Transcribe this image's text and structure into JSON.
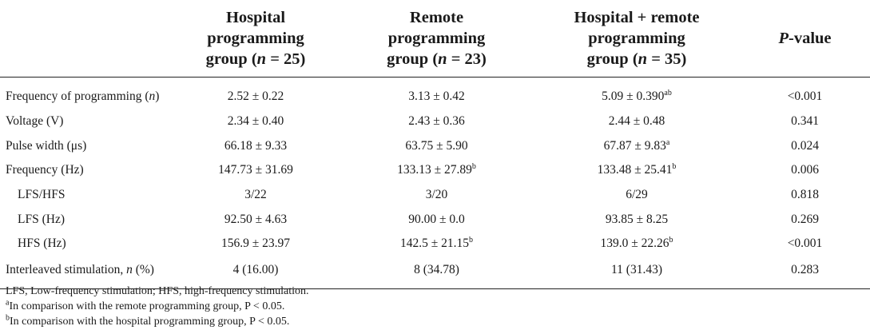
{
  "table": {
    "headers": [
      "",
      "Hospital programming group (n = 25)",
      "Remote programming group (n = 23)",
      "Hospital + remote programming group (n = 35)",
      "P-value"
    ],
    "header_parts": {
      "h1": [
        "Hospital",
        "programming",
        "group (",
        "n",
        " = 25)"
      ],
      "h2": [
        "Remote",
        "programming",
        "group (",
        "n",
        " = 23)"
      ],
      "h3": [
        "Hospital + remote",
        "programming",
        "group (",
        "n",
        " = 35)"
      ],
      "h4": [
        "P",
        "-value"
      ]
    },
    "rows": [
      {
        "label": "Frequency of programming (n)",
        "label_main": "Frequency of programming (",
        "label_italic": "n",
        "label_end": ")",
        "c1": "2.52 ± 0.22",
        "c2": "3.13 ± 0.42",
        "c3": "5.09 ± 0.390",
        "c3_sup": "ab",
        "p": "<0.001"
      },
      {
        "label": "Voltage (V)",
        "c1": "2.34 ± 0.40",
        "c2": "2.43 ± 0.36",
        "c3": "2.44 ± 0.48",
        "p": "0.341"
      },
      {
        "label": "Pulse width (μs)",
        "c1": "66.18 ± 9.33",
        "c2": "63.75 ± 5.90",
        "c3": "67.87 ± 9.83",
        "c3_sup": "a",
        "p": "0.024"
      },
      {
        "label": "Frequency (Hz)",
        "c1": "147.73 ± 31.69",
        "c2": "133.13 ± 27.89",
        "c2_sup": "b",
        "c3": "133.48 ± 25.41",
        "c3_sup": "b",
        "p": "0.006"
      },
      {
        "label": "LFS/HFS",
        "c1": "3/22",
        "c2": "3/20",
        "c3": "6/29",
        "p": "0.818"
      },
      {
        "label": "LFS (Hz)",
        "c1": "92.50 ± 4.63",
        "c2": "90.00 ± 0.0",
        "c3": "93.85 ± 8.25",
        "p": "0.269"
      },
      {
        "label": "HFS (Hz)",
        "c1": "156.9 ± 23.97",
        "c2": "142.5 ± 21.15",
        "c2_sup": "b",
        "c3": "139.0 ± 22.26",
        "c3_sup": "b",
        "p": "<0.001"
      },
      {
        "label": "Interleaved stimulation, n (%)",
        "label_main": "Interleaved stimulation, ",
        "label_italic": "n",
        "label_end": " (%)",
        "c1": "4 (16.00)",
        "c2": "8 (34.78)",
        "c3": "11 (31.43)",
        "p": "0.283"
      }
    ]
  },
  "notes": {
    "abbrev": "LFS, Low-frequency stimulation; HFS, high-frequency stimulation.",
    "note_a_sup": "a",
    "note_a": "In comparison with the remote programming group, P < 0.05.",
    "note_b_sup": "b",
    "note_b": "In comparison with the hospital programming group, P < 0.05."
  }
}
